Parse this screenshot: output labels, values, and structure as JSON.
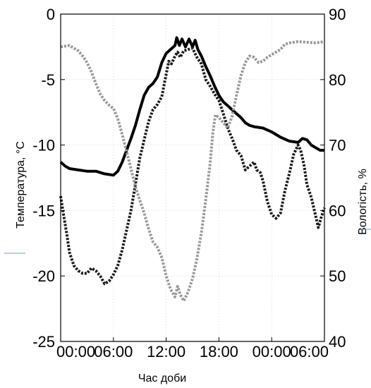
{
  "chart_data": {
    "type": "line",
    "title": "",
    "xlabel": "Час доби",
    "ylabel_left": "Температура, °C",
    "ylabel_right": "Вологість, %",
    "x_ticks": [
      "00:00",
      "06:00",
      "12:00",
      "18:00",
      "00:00",
      "06:00"
    ],
    "x_range_hours": [
      0,
      30
    ],
    "ylim_left": [
      -25,
      0
    ],
    "ylim_right": [
      40,
      90
    ],
    "yticks_left": [
      "0",
      "-5",
      "-10",
      "-15",
      "-20",
      "-25"
    ],
    "yticks_right": [
      "90",
      "80",
      "70",
      "60",
      "50",
      "40"
    ],
    "grid": true,
    "series": [
      {
        "axis": "left",
        "color": "#000000",
        "style": "solid",
        "points": [
          [
            0,
            -11.3
          ],
          [
            0.5,
            -11.6
          ],
          [
            1,
            -11.8
          ],
          [
            2,
            -11.9
          ],
          [
            3,
            -12.0
          ],
          [
            4,
            -12.0
          ],
          [
            5,
            -12.2
          ],
          [
            6,
            -12.3
          ],
          [
            6.5,
            -12.0
          ],
          [
            7,
            -11.3
          ],
          [
            7.5,
            -10.4
          ],
          [
            8,
            -9.5
          ],
          [
            8.5,
            -8.5
          ],
          [
            9,
            -7.3
          ],
          [
            9.5,
            -6.2
          ],
          [
            10,
            -5.6
          ],
          [
            10.5,
            -5.3
          ],
          [
            11,
            -4.8
          ],
          [
            11.5,
            -3.7
          ],
          [
            12,
            -3.0
          ],
          [
            12.5,
            -2.7
          ],
          [
            13,
            -2.4
          ],
          [
            13.2,
            -1.8
          ],
          [
            13.5,
            -2.4
          ],
          [
            13.8,
            -1.9
          ],
          [
            14.2,
            -2.5
          ],
          [
            14.6,
            -1.9
          ],
          [
            15,
            -2.5
          ],
          [
            15.3,
            -2.0
          ],
          [
            15.6,
            -2.7
          ],
          [
            16,
            -3.2
          ],
          [
            16.5,
            -4.0
          ],
          [
            17,
            -4.7
          ],
          [
            17.5,
            -5.5
          ],
          [
            18,
            -6.2
          ],
          [
            18.5,
            -6.7
          ],
          [
            19,
            -7.0
          ],
          [
            19.5,
            -7.3
          ],
          [
            20,
            -7.6
          ],
          [
            20.5,
            -7.9
          ],
          [
            21,
            -8.3
          ],
          [
            21.5,
            -8.5
          ],
          [
            22,
            -8.6
          ],
          [
            23,
            -8.7
          ],
          [
            24,
            -9.0
          ],
          [
            25,
            -9.4
          ],
          [
            26,
            -9.7
          ],
          [
            27,
            -9.8
          ],
          [
            27.5,
            -9.5
          ],
          [
            28,
            -9.6
          ],
          [
            28.5,
            -10.0
          ],
          [
            29,
            -10.2
          ],
          [
            29.5,
            -10.4
          ],
          [
            30,
            -10.4
          ]
        ]
      },
      {
        "axis": "left",
        "color": "#1a1a1a",
        "style": "dotted",
        "points": [
          [
            0,
            -13.9
          ],
          [
            0.3,
            -15.2
          ],
          [
            0.7,
            -16.8
          ],
          [
            1,
            -18.2
          ],
          [
            1.5,
            -19.2
          ],
          [
            2,
            -19.6
          ],
          [
            2.5,
            -19.8
          ],
          [
            3,
            -19.8
          ],
          [
            3.5,
            -19.4
          ],
          [
            4,
            -19.6
          ],
          [
            4.5,
            -20.0
          ],
          [
            5,
            -20.6
          ],
          [
            5.5,
            -20.4
          ],
          [
            6,
            -19.9
          ],
          [
            6.5,
            -19.2
          ],
          [
            7,
            -18.0
          ],
          [
            7.5,
            -16.5
          ],
          [
            8,
            -15.0
          ],
          [
            8.5,
            -13.0
          ],
          [
            9,
            -11.0
          ],
          [
            9.5,
            -9.6
          ],
          [
            10,
            -8.2
          ],
          [
            10.5,
            -7.3
          ],
          [
            11,
            -6.9
          ],
          [
            11.5,
            -6.3
          ],
          [
            12,
            -4.6
          ],
          [
            12.3,
            -3.6
          ],
          [
            12.6,
            -3.8
          ],
          [
            13,
            -3.2
          ],
          [
            13.3,
            -2.9
          ],
          [
            13.6,
            -3.3
          ],
          [
            14,
            -2.8
          ],
          [
            14.5,
            -2.7
          ],
          [
            15,
            -2.6
          ],
          [
            15.5,
            -3.3
          ],
          [
            16,
            -3.8
          ],
          [
            16.5,
            -5.0
          ],
          [
            17,
            -5.5
          ],
          [
            17.5,
            -6.1
          ],
          [
            18,
            -6.6
          ],
          [
            18.5,
            -7.6
          ],
          [
            19,
            -8.7
          ],
          [
            19.5,
            -9.5
          ],
          [
            20,
            -10.4
          ],
          [
            20.5,
            -10.8
          ],
          [
            21,
            -11.9
          ],
          [
            21.5,
            -11.6
          ],
          [
            22,
            -11.3
          ],
          [
            22.3,
            -11.9
          ],
          [
            22.7,
            -12.1
          ],
          [
            23,
            -12.7
          ],
          [
            23.5,
            -14.3
          ],
          [
            24,
            -15.3
          ],
          [
            24.5,
            -15.6
          ],
          [
            25,
            -15.2
          ],
          [
            25.5,
            -13.5
          ],
          [
            26,
            -12.2
          ],
          [
            26.5,
            -10.7
          ],
          [
            27,
            -10.0
          ],
          [
            27.3,
            -10.4
          ],
          [
            27.7,
            -11.6
          ],
          [
            28,
            -13.0
          ],
          [
            28.5,
            -14.0
          ],
          [
            29,
            -15.4
          ],
          [
            29.3,
            -16.3
          ],
          [
            29.6,
            -15.6
          ],
          [
            30,
            -14.8
          ]
        ]
      },
      {
        "axis": "right",
        "color": "#999999",
        "style": "dotted",
        "points": [
          [
            0,
            85.0
          ],
          [
            1,
            85.2
          ],
          [
            2,
            84.4
          ],
          [
            2.5,
            83.6
          ],
          [
            3,
            82.6
          ],
          [
            3.5,
            81.2
          ],
          [
            4,
            79.4
          ],
          [
            4.5,
            77.8
          ],
          [
            5,
            76.8
          ],
          [
            5.5,
            76.1
          ],
          [
            6,
            75.6
          ],
          [
            6.5,
            74.0
          ],
          [
            7,
            71.6
          ],
          [
            7.5,
            69.0
          ],
          [
            8,
            66.4
          ],
          [
            8.5,
            63.6
          ],
          [
            9,
            61.6
          ],
          [
            9.5,
            59.6
          ],
          [
            10,
            57.2
          ],
          [
            10.5,
            55.2
          ],
          [
            11,
            54.4
          ],
          [
            11.5,
            52.8
          ],
          [
            12,
            50.0
          ],
          [
            12.5,
            48.0
          ],
          [
            13,
            46.8
          ],
          [
            13.3,
            48.4
          ],
          [
            13.6,
            47.2
          ],
          [
            14,
            46.2
          ],
          [
            14.5,
            47.6
          ],
          [
            15,
            49.6
          ],
          [
            15.5,
            52.6
          ],
          [
            16,
            56.6
          ],
          [
            16.5,
            61.6
          ],
          [
            17,
            67.2
          ],
          [
            17.3,
            71.8
          ],
          [
            17.6,
            74.6
          ],
          [
            18,
            74.2
          ],
          [
            18.5,
            73.4
          ],
          [
            19,
            72.6
          ],
          [
            19.5,
            74.4
          ],
          [
            20,
            77.6
          ],
          [
            20.5,
            80.6
          ],
          [
            21,
            82.6
          ],
          [
            21.5,
            83.6
          ],
          [
            22,
            83.4
          ],
          [
            22.5,
            82.6
          ],
          [
            23,
            82.8
          ],
          [
            23.5,
            83.4
          ],
          [
            24,
            83.8
          ],
          [
            25,
            84.6
          ],
          [
            25.5,
            85.4
          ],
          [
            26,
            85.6
          ],
          [
            27,
            85.8
          ],
          [
            28,
            85.7
          ],
          [
            29,
            85.6
          ],
          [
            30,
            85.8
          ]
        ]
      }
    ]
  }
}
